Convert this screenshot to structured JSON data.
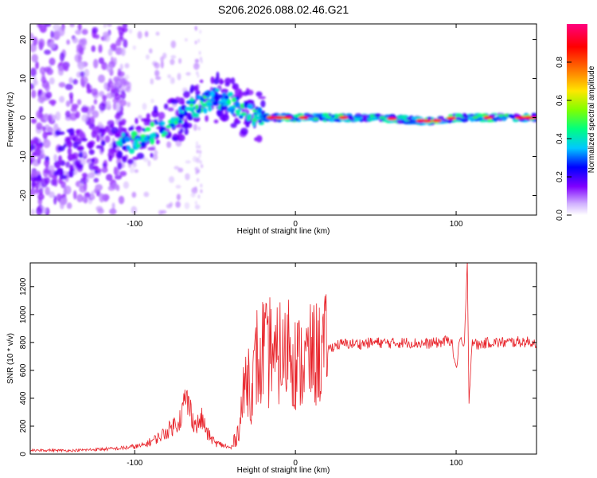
{
  "title": "S206.2026.088.02.46.G21",
  "colors": {
    "signal_line": "#e8232a",
    "axis": "#000000",
    "colorbar": [
      "#ffffff",
      "#d0b0ff",
      "#7f00ff",
      "#0000ff",
      "#00c8ff",
      "#00ff80",
      "#80ff00",
      "#ffe600",
      "#ff7f00",
      "#ff0000",
      "#ff0080"
    ]
  },
  "chart_data": [
    {
      "type": "heatmap",
      "name": "spectrogram",
      "xlabel": "Height of straight line (km)",
      "ylabel": "Frequency (Hz)",
      "xlim": [
        -165,
        150
      ],
      "ylim": [
        -25,
        24
      ],
      "x_ticks": [
        -100,
        0,
        100
      ],
      "x_tick_labels": [
        "-100",
        "0",
        "100"
      ],
      "y_ticks": [
        -20,
        -10,
        0,
        10,
        20
      ],
      "y_tick_labels": [
        "-20",
        "-10",
        "0",
        "10",
        "20"
      ],
      "ridge": [
        {
          "x": -165,
          "y": -10
        },
        {
          "x": -130,
          "y": -9
        },
        {
          "x": -100,
          "y": -6
        },
        {
          "x": -80,
          "y": -2
        },
        {
          "x": -65,
          "y": 2
        },
        {
          "x": -50,
          "y": 5
        },
        {
          "x": -40,
          "y": 4
        },
        {
          "x": -30,
          "y": 1
        },
        {
          "x": -20,
          "y": 0
        },
        {
          "x": 0,
          "y": 0
        },
        {
          "x": 50,
          "y": 0
        },
        {
          "x": 85,
          "y": -1
        },
        {
          "x": 100,
          "y": 0
        },
        {
          "x": 150,
          "y": 0
        }
      ],
      "colorbar": {
        "label": "Normalized spectral amplitude",
        "range": [
          0,
          1
        ],
        "ticks": [
          0.0,
          0.2,
          0.4,
          0.6,
          0.8
        ],
        "tick_labels": [
          "0.0",
          "0.2",
          "0.4",
          "0.6",
          "0.8"
        ]
      }
    },
    {
      "type": "line",
      "name": "snr",
      "xlabel": "Height of straight line (km)",
      "ylabel": "SNR (10 * v/v)",
      "xlim": [
        -165,
        150
      ],
      "ylim": [
        0,
        1370
      ],
      "x_ticks": [
        -100,
        0,
        100
      ],
      "x_tick_labels": [
        "-100",
        "0",
        "100"
      ],
      "y_ticks": [
        0,
        200,
        400,
        600,
        800,
        1000,
        1200
      ],
      "y_tick_labels": [
        "0",
        "200",
        "400",
        "600",
        "800",
        "1000",
        "1200"
      ],
      "series": [
        {
          "name": "SNR",
          "x": [
            -165,
            -140,
            -110,
            -95,
            -85,
            -78,
            -72,
            -68,
            -65,
            -62,
            -58,
            -55,
            -50,
            -44,
            -40,
            -36,
            -33,
            -30,
            -27,
            -24,
            -22,
            -20,
            -17,
            -15,
            -13,
            -10,
            -7,
            -4,
            0,
            5,
            10,
            15,
            20,
            25,
            30,
            40,
            50,
            60,
            70,
            80,
            90,
            97,
            100,
            102,
            105,
            107,
            108,
            110,
            113,
            120,
            130,
            140,
            150
          ],
          "values": [
            30,
            25,
            40,
            60,
            120,
            180,
            250,
            400,
            300,
            200,
            250,
            150,
            80,
            60,
            40,
            150,
            350,
            600,
            450,
            700,
            550,
            800,
            650,
            850,
            600,
            750,
            650,
            850,
            650,
            650,
            700,
            720,
            750,
            780,
            790,
            790,
            800,
            795,
            800,
            790,
            800,
            820,
            600,
            820,
            760,
            1350,
            380,
            820,
            780,
            800,
            800,
            805,
            800
          ]
        }
      ]
    }
  ]
}
